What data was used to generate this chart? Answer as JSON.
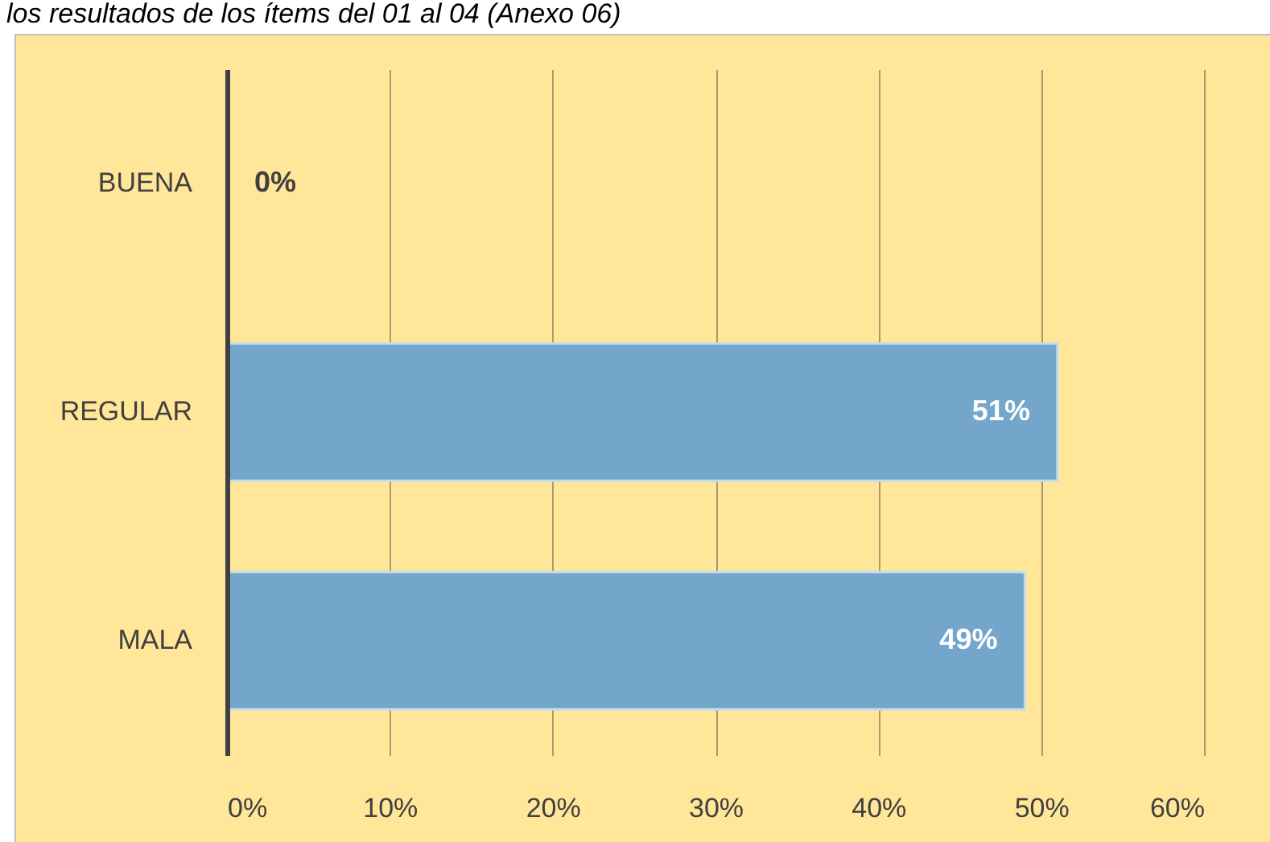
{
  "chart_data": {
    "type": "bar",
    "orientation": "horizontal",
    "title": "los resultados de los ítems del 01 al 04 (Anexo 06)",
    "categories": [
      "BUENA",
      "REGULAR",
      "MALA"
    ],
    "values": [
      0,
      51,
      49
    ],
    "value_labels": [
      "0%",
      "51%",
      "49%"
    ],
    "color": "#74a6cc",
    "xlim": [
      0,
      60
    ],
    "xticks": [
      {
        "value": 0,
        "label": "0%"
      },
      {
        "value": 10,
        "label": "10%"
      },
      {
        "value": 20,
        "label": "20%"
      },
      {
        "value": 30,
        "label": "30%"
      },
      {
        "value": 40,
        "label": "40%"
      },
      {
        "value": 50,
        "label": "50%"
      },
      {
        "value": 60,
        "label": "60%"
      }
    ],
    "grid": "x"
  }
}
